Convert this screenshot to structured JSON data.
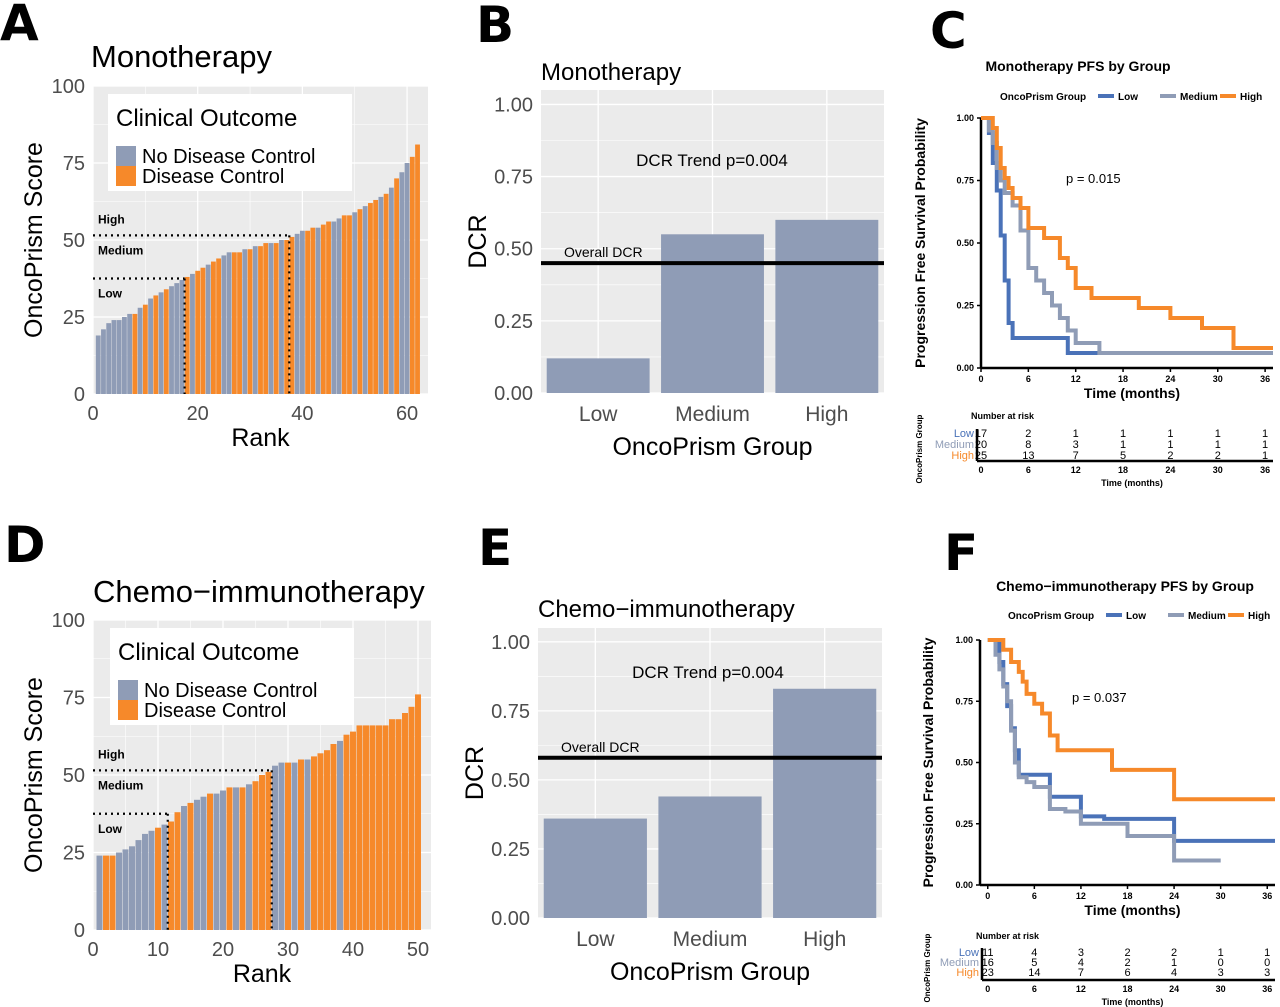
{
  "figure": {
    "panel_letters": [
      "A",
      "B",
      "C",
      "D",
      "E",
      "F"
    ]
  },
  "colors": {
    "no_disease_control": "#8f9cb6",
    "disease_control": "#f6892a",
    "panel_bg": "#ebebeb",
    "grid": "#ffffff",
    "km_low": "#4a72b8",
    "km_medium": "#8f9cb6",
    "km_high": "#f6892a"
  },
  "chart_data": [
    {
      "id": "A",
      "type": "bar",
      "title": "Monotherapy",
      "xlabel": "Rank",
      "ylabel": "OncoPrism Score",
      "xlim": [
        0,
        64
      ],
      "ylim": [
        0,
        100
      ],
      "xticks": [
        0,
        20,
        40,
        60
      ],
      "yticks": [
        0,
        25,
        50,
        75,
        100
      ],
      "legend": {
        "title": "Clinical Outcome",
        "position": "top-left",
        "entries": [
          "No Disease Control",
          "Disease Control"
        ]
      },
      "thresholds": [
        {
          "score": 37.5,
          "rank": 17.5
        },
        {
          "score": 51.5,
          "rank": 37.5
        }
      ],
      "group_labels": [
        "High",
        "Medium",
        "Low"
      ],
      "rank": [
        1,
        2,
        3,
        4,
        5,
        6,
        7,
        8,
        9,
        10,
        11,
        12,
        13,
        14,
        15,
        16,
        17,
        18,
        19,
        20,
        21,
        22,
        23,
        24,
        25,
        26,
        27,
        28,
        29,
        30,
        31,
        32,
        33,
        34,
        35,
        36,
        37,
        38,
        39,
        40,
        41,
        42,
        43,
        44,
        45,
        46,
        47,
        48,
        49,
        50,
        51,
        52,
        53,
        54,
        55,
        56,
        57,
        58,
        59,
        60,
        61,
        62
      ],
      "values": [
        19,
        21,
        23,
        24,
        24,
        25,
        26,
        26,
        28,
        29,
        31,
        32,
        33,
        34,
        35,
        36,
        37,
        38,
        39,
        40,
        41,
        42,
        43,
        44,
        45,
        46,
        46,
        46,
        47,
        47,
        48,
        48,
        49,
        49,
        49,
        50,
        50,
        51,
        52,
        53,
        53,
        54,
        54,
        55,
        56,
        56,
        57,
        58,
        58,
        59,
        60,
        61,
        62,
        63,
        64,
        65,
        67,
        70,
        72,
        75,
        77,
        81
      ],
      "outcome": [
        0,
        0,
        0,
        0,
        0,
        0,
        0,
        1,
        0,
        1,
        0,
        1,
        0,
        1,
        0,
        0,
        0,
        1,
        0,
        1,
        1,
        0,
        1,
        1,
        0,
        0,
        1,
        1,
        0,
        1,
        0,
        1,
        1,
        0,
        1,
        0,
        1,
        1,
        0,
        0,
        1,
        1,
        0,
        1,
        1,
        0,
        0,
        1,
        1,
        0,
        1,
        0,
        1,
        1,
        0,
        1,
        0,
        1,
        0,
        0,
        1,
        1
      ]
    },
    {
      "id": "B",
      "type": "bar",
      "title": "Monotherapy",
      "xlabel": "OncoPrism Group",
      "ylabel": "DCR",
      "categories": [
        "Low",
        "Medium",
        "High"
      ],
      "values": [
        0.12,
        0.55,
        0.6
      ],
      "ylim": [
        0,
        1.05
      ],
      "yticks": [
        "0.00",
        "0.25",
        "0.50",
        "0.75",
        "1.00"
      ],
      "reference_line": {
        "label": "Overall DCR",
        "value": 0.45
      },
      "annotation": "DCR Trend p=0.004"
    },
    {
      "id": "C",
      "type": "line",
      "title": "Monotherapy PFS by Group",
      "xlabel": "Time (months)",
      "ylabel": "Progression Free Survival Probability",
      "legend_title": "OncoPrism Group",
      "xlim": [
        0,
        37
      ],
      "ylim": [
        0,
        1
      ],
      "xticks": [
        0,
        6,
        12,
        18,
        24,
        30,
        36
      ],
      "yticks": [
        "0.00",
        "0.25",
        "0.50",
        "0.75",
        "1.00"
      ],
      "pvalue": "p = 0.015",
      "series": [
        {
          "name": "Low",
          "x": [
            0,
            1,
            1.5,
            2,
            2.5,
            3,
            3.5,
            4,
            11,
            15,
            37
          ],
          "y": [
            1,
            0.94,
            0.82,
            0.71,
            0.53,
            0.35,
            0.18,
            0.12,
            0.06,
            0.06,
            0.06
          ]
        },
        {
          "name": "Medium",
          "x": [
            0,
            1,
            1.5,
            2,
            2.5,
            3,
            4,
            5,
            6,
            7,
            8,
            9,
            10,
            11,
            12,
            13,
            15,
            37
          ],
          "y": [
            1,
            0.95,
            0.9,
            0.8,
            0.75,
            0.7,
            0.65,
            0.55,
            0.4,
            0.35,
            0.3,
            0.25,
            0.2,
            0.15,
            0.1,
            0.1,
            0.06,
            0.06
          ]
        },
        {
          "name": "High",
          "x": [
            0,
            1.5,
            2,
            2.5,
            3,
            3.5,
            4,
            5,
            6,
            8,
            10,
            11,
            12,
            14,
            16,
            20,
            24,
            28,
            32,
            37
          ],
          "y": [
            1,
            0.96,
            0.88,
            0.8,
            0.76,
            0.72,
            0.68,
            0.64,
            0.56,
            0.52,
            0.44,
            0.4,
            0.32,
            0.28,
            0.28,
            0.24,
            0.2,
            0.16,
            0.08,
            0.08
          ]
        }
      ],
      "risk_table": {
        "title": "Number at risk",
        "xlabel": "Time (months)",
        "ylabel": "OncoPrism Group",
        "times": [
          0,
          6,
          12,
          18,
          24,
          30,
          36
        ],
        "rows": [
          {
            "name": "Low",
            "counts": [
              17,
              2,
              1,
              1,
              1,
              1,
              1
            ]
          },
          {
            "name": "Medium",
            "counts": [
              20,
              8,
              3,
              1,
              1,
              1,
              1
            ]
          },
          {
            "name": "High",
            "counts": [
              25,
              13,
              7,
              5,
              2,
              2,
              1
            ]
          }
        ]
      }
    },
    {
      "id": "D",
      "type": "bar",
      "title": "Chemo−immunotherapy",
      "xlabel": "Rank",
      "ylabel": "OncoPrism Score",
      "xlim": [
        0,
        52
      ],
      "ylim": [
        0,
        100
      ],
      "xticks": [
        0,
        10,
        20,
        30,
        40,
        50
      ],
      "yticks": [
        0,
        25,
        50,
        75,
        100
      ],
      "legend": {
        "title": "Clinical Outcome",
        "position": "top-left",
        "entries": [
          "No Disease Control",
          "Disease Control"
        ]
      },
      "thresholds": [
        {
          "score": 37.5,
          "rank": 11.5
        },
        {
          "score": 51.5,
          "rank": 27.5
        }
      ],
      "group_labels": [
        "High",
        "Medium",
        "Low"
      ],
      "rank": [
        1,
        2,
        3,
        4,
        5,
        6,
        7,
        8,
        9,
        10,
        11,
        12,
        13,
        14,
        15,
        16,
        17,
        18,
        19,
        20,
        21,
        22,
        23,
        24,
        25,
        26,
        27,
        28,
        29,
        30,
        31,
        32,
        33,
        34,
        35,
        36,
        37,
        38,
        39,
        40,
        41,
        42,
        43,
        44,
        45,
        46,
        47,
        48,
        49,
        50
      ],
      "values": [
        24,
        24,
        24,
        25,
        26,
        27,
        29,
        31,
        32,
        33,
        34,
        35,
        38,
        40,
        41,
        42,
        43,
        44,
        44,
        45,
        46,
        46,
        46,
        47,
        48,
        50,
        51,
        53,
        54,
        54,
        54,
        55,
        55,
        56,
        57,
        58,
        60,
        61,
        63,
        64,
        66,
        66,
        66,
        66,
        66,
        68,
        68,
        70,
        72,
        76
      ],
      "outcome": [
        0,
        1,
        1,
        0,
        0,
        0,
        0,
        0,
        0,
        1,
        0,
        1,
        1,
        0,
        1,
        0,
        0,
        1,
        0,
        0,
        1,
        0,
        1,
        0,
        1,
        1,
        1,
        0,
        0,
        1,
        0,
        1,
        0,
        1,
        1,
        1,
        1,
        0,
        1,
        1,
        1,
        1,
        1,
        1,
        1,
        1,
        1,
        1,
        1,
        1
      ]
    },
    {
      "id": "E",
      "type": "bar",
      "title": "Chemo−immunotherapy",
      "xlabel": "OncoPrism Group",
      "ylabel": "DCR",
      "categories": [
        "Low",
        "Medium",
        "High"
      ],
      "values": [
        0.36,
        0.44,
        0.83
      ],
      "ylim": [
        0,
        1.05
      ],
      "yticks": [
        "0.00",
        "0.25",
        "0.50",
        "0.75",
        "1.00"
      ],
      "reference_line": {
        "label": "Overall DCR",
        "value": 0.58
      },
      "annotation": "DCR Trend p=0.004"
    },
    {
      "id": "F",
      "type": "line",
      "title": "Chemo−immunotherapy PFS by Group",
      "xlabel": "Time (months)",
      "ylabel": "Progression Free Survival Probability",
      "legend_title": "OncoPrism Group",
      "xlim": [
        -1,
        37
      ],
      "ylim": [
        0,
        1
      ],
      "xticks": [
        0,
        6,
        12,
        18,
        24,
        30,
        36
      ],
      "yticks": [
        "0.00",
        "0.25",
        "0.50",
        "0.75",
        "1.00"
      ],
      "pvalue": "p = 0.037",
      "series": [
        {
          "name": "Low",
          "x": [
            0,
            1.5,
            2,
            2.5,
            3,
            3.5,
            4,
            5,
            8,
            10,
            12,
            15,
            24,
            37
          ],
          "y": [
            1,
            0.91,
            0.82,
            0.73,
            0.64,
            0.55,
            0.45,
            0.45,
            0.36,
            0.36,
            0.28,
            0.27,
            0.18,
            0.18
          ]
        },
        {
          "name": "Medium",
          "x": [
            0,
            1,
            1.5,
            2,
            2.5,
            3,
            3.5,
            4,
            5,
            6,
            8,
            10,
            12,
            14,
            18,
            22,
            24,
            30
          ],
          "y": [
            1,
            0.94,
            0.88,
            0.81,
            0.75,
            0.63,
            0.5,
            0.44,
            0.42,
            0.4,
            0.31,
            0.3,
            0.25,
            0.25,
            0.2,
            0.2,
            0.1,
            0.1
          ]
        },
        {
          "name": "High",
          "x": [
            0,
            2,
            3,
            4,
            4.5,
            5,
            6,
            7,
            8,
            9,
            12,
            16,
            18,
            24,
            37
          ],
          "y": [
            1,
            0.96,
            0.91,
            0.87,
            0.83,
            0.78,
            0.74,
            0.7,
            0.61,
            0.55,
            0.55,
            0.47,
            0.47,
            0.35,
            0.35
          ]
        }
      ],
      "risk_table": {
        "title": "Number at risk",
        "xlabel": "Time (months)",
        "ylabel": "OncoPrism Group",
        "times": [
          0,
          6,
          12,
          18,
          24,
          30,
          36
        ],
        "rows": [
          {
            "name": "Low",
            "counts": [
              11,
              4,
              3,
              2,
              2,
              1,
              1
            ]
          },
          {
            "name": "Medium",
            "counts": [
              16,
              5,
              4,
              2,
              1,
              0,
              0
            ]
          },
          {
            "name": "High",
            "counts": [
              23,
              14,
              7,
              6,
              4,
              3,
              3
            ]
          }
        ]
      }
    }
  ]
}
